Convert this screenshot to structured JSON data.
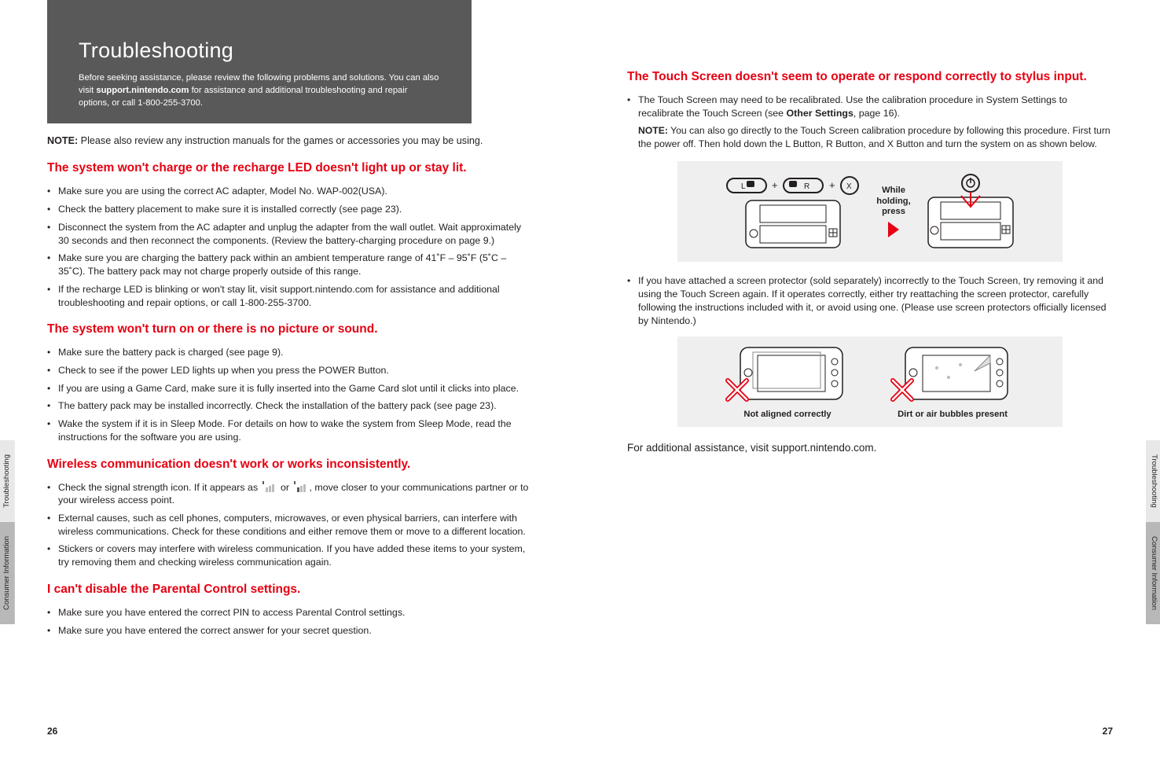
{
  "header": {
    "title": "Troubleshooting",
    "sub_pre": "Before seeking assistance, please review the following problems and solutions. You can also visit ",
    "sub_bold": "support.nintendo.com",
    "sub_post": " for assistance and additional troubleshooting and repair options, or call 1-800-255-3700."
  },
  "note_line_bold": "NOTE:",
  "note_line_rest": " Please also review any instruction manuals for the games or accessories you may be using.",
  "sections_left": [
    {
      "title": "The system won't charge or the recharge LED doesn't light up or stay lit.",
      "items": [
        "Make sure you are using the correct AC adapter, Model No. WAP-002(USA).",
        "Check the battery placement to make sure it is installed correctly (see page 23).",
        "Disconnect the system from the AC adapter and unplug the adapter from the wall outlet. Wait approximately 30 seconds and then reconnect the components. (Review the battery-charging procedure on page 9.)",
        "Make sure you are charging the battery pack within an ambient temperature range of 41˚F – 95˚F (5˚C – 35˚C). The battery pack may not charge properly outside of this range.",
        "If the recharge LED is blinking or won't stay lit, visit support.nintendo.com for assistance and additional troubleshooting and repair options, or call 1-800-255-3700."
      ]
    },
    {
      "title": "The system won't turn on or there is no picture or sound.",
      "items": [
        "Make sure the battery pack is charged (see page 9).",
        "Check to see if the power LED lights up when you press the POWER Button.",
        "If you are using a Game Card, make sure it is fully inserted into the Game Card slot until it clicks into place.",
        "The battery pack may be installed incorrectly. Check the installation of the battery pack (see page 23).",
        "Wake the system if it is in Sleep Mode. For details on how to wake the system from Sleep Mode, read the instructions for the software you are using."
      ]
    },
    {
      "title": "Wireless communication doesn't work or works inconsistently.",
      "items_special": true,
      "item1_pre": "Check the signal strength icon. If it appears as ",
      "item1_mid": " or ",
      "item1_post": ", move closer to your communications partner or to your wireless access point.",
      "items_rest": [
        "External causes, such as cell phones, computers, microwaves, or even physical barriers, can interfere with wireless communications. Check for these conditions and either remove them or move to a different location.",
        "Stickers or covers may interfere with wireless communication. If you have added these items to your system, try removing them and checking wireless communication again."
      ]
    },
    {
      "title": "I can't disable the Parental Control settings.",
      "items": [
        "Make sure you have entered the correct PIN to access Parental Control settings.",
        "Make sure you have entered the correct answer for your secret question."
      ]
    }
  ],
  "right": {
    "title": "The Touch Screen doesn't seem to operate or respond correctly to stylus input.",
    "item1_pre": "The Touch Screen may need to be recalibrated. Use the calibration procedure in System Settings to recalibrate the Touch Screen (see ",
    "item1_bold": "Other Settings",
    "item1_post": ", page 16).",
    "note_bold": "NOTE:",
    "note_rest": " You can also go directly to the Touch Screen calibration procedure by following this procedure. First turn the power off.  Then hold down the L Button, R Button, and X Button and turn the system on as shown below.",
    "fig_label": "While holding, press",
    "item2": "If you have attached a screen protector (sold separately) incorrectly to the Touch Screen, try removing it and using the Touch Screen again. If it operates correctly, either try reattaching the screen protector, carefully following the instructions included with it, or avoid using one. (Please use screen protectors officially licensed by Nintendo.)",
    "caption1": "Not aligned correctly",
    "caption2": "Dirt or air bubbles present",
    "final": "For additional assistance, visit support.nintendo.com."
  },
  "tabs": {
    "t1": "Troubleshooting",
    "t2": "Consumer Information"
  },
  "page_left": "26",
  "page_right": "27",
  "colors": {
    "accent": "#e60012",
    "header_bg": "#595959",
    "grey_bg": "#efefef",
    "text": "#231f20"
  }
}
